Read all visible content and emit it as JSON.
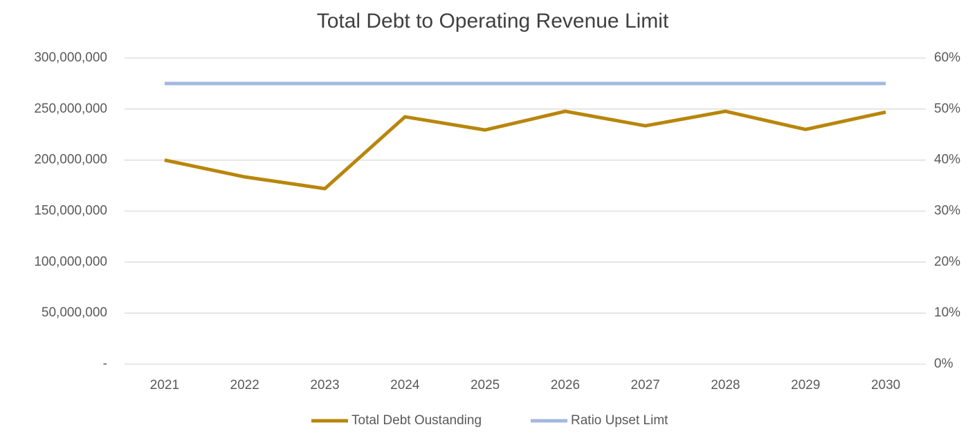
{
  "chart_data": {
    "type": "line",
    "title": "Total Debt to Operating Revenue Limit",
    "categories": [
      "2021",
      "2022",
      "2023",
      "2024",
      "2025",
      "2026",
      "2027",
      "2028",
      "2029",
      "2030"
    ],
    "series": [
      {
        "name": "Total Debt Oustanding",
        "color": "#b8860b",
        "values": [
          200000000,
          183500000,
          172000000,
          242400000,
          229500000,
          247800000,
          233600000,
          247800000,
          230000000,
          247000000
        ]
      },
      {
        "name": "Ratio Upset Limt",
        "color": "#a4b8e0",
        "axis": "y2",
        "values": [
          55,
          55,
          55,
          55,
          55,
          55,
          55,
          55,
          55,
          55
        ]
      }
    ],
    "ylim": [
      0,
      300000000
    ],
    "yticks": [
      {
        "value": 0,
        "label": "-"
      },
      {
        "value": 50000000,
        "label": "50,000,000"
      },
      {
        "value": 100000000,
        "label": "100,000,000"
      },
      {
        "value": 150000000,
        "label": "150,000,000"
      },
      {
        "value": 200000000,
        "label": "200,000,000"
      },
      {
        "value": 250000000,
        "label": "250,000,000"
      },
      {
        "value": 300000000,
        "label": "300,000,000"
      }
    ],
    "y2lim": [
      0,
      60
    ],
    "y2ticks": [
      {
        "value": 0,
        "label": "0%"
      },
      {
        "value": 10,
        "label": "10%"
      },
      {
        "value": 20,
        "label": "20%"
      },
      {
        "value": 30,
        "label": "30%"
      },
      {
        "value": 40,
        "label": "40%"
      },
      {
        "value": 50,
        "label": "50%"
      },
      {
        "value": 60,
        "label": "60%"
      }
    ],
    "grid": true,
    "legend": "bottom"
  }
}
